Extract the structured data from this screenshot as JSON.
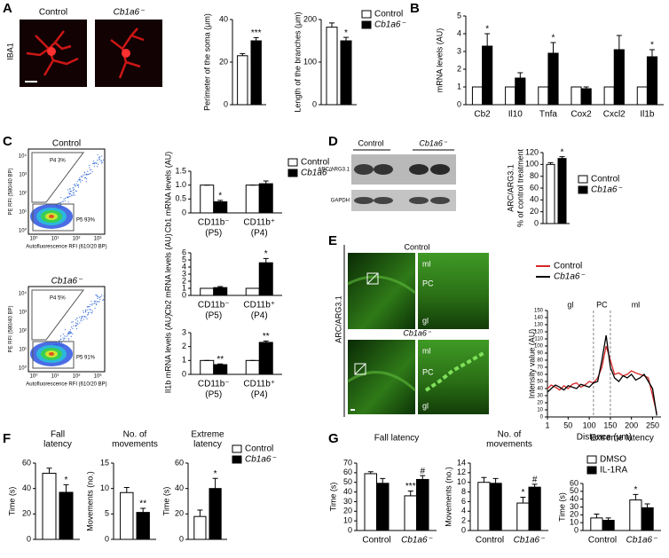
{
  "figure": {
    "panel_labels": [
      "A",
      "B",
      "C",
      "D",
      "E",
      "F",
      "G"
    ],
    "a_images": {
      "labels": [
        "Control",
        "Cb1a6⁻"
      ],
      "stain": "IBA1"
    },
    "c_flow": {
      "plots": [
        {
          "title": "Control",
          "gates": [
            "P4 3%",
            "P5 93%"
          ]
        },
        {
          "title": "Cb1a6⁻",
          "gates": [
            "P4 5%",
            "P5 91%"
          ]
        }
      ],
      "y_label": "PE RFI (580/40 BP)",
      "x_label": "Autofluorescence RFI (610/20 BP)",
      "ticks": [
        "10⁰",
        "10¹",
        "10²",
        "10³",
        "10⁴"
      ]
    },
    "d_blot": {
      "groups": [
        "Control",
        "Cb1a6⁻"
      ],
      "rows": [
        "ARC/ARG3.1",
        "GAPDH"
      ]
    },
    "e_images": {
      "stain": "ARC/ARG3.1",
      "panels": [
        {
          "title": "Control",
          "layers": [
            "ml",
            "PC",
            "gl"
          ]
        },
        {
          "title": "Cb1a6⁻",
          "layers": [
            "ml",
            "PC",
            "gl"
          ]
        }
      ]
    }
  },
  "chart_data": [
    {
      "type": "bar",
      "y_label": "Perimeter of the soma (μm)",
      "ylim": [
        0,
        40
      ],
      "yticks": [
        0,
        20,
        40
      ],
      "series": [
        {
          "color": "#ffffff",
          "values": [
            23
          ],
          "errors": [
            1
          ],
          "significance": [
            null
          ]
        },
        {
          "color": "#000000",
          "values": [
            30
          ],
          "errors": [
            1.5
          ],
          "significance": [
            "***"
          ]
        }
      ]
    },
    {
      "type": "bar",
      "y_label": "Length of the branches (μm)",
      "ylim": [
        0,
        200
      ],
      "yticks": [
        0,
        100,
        200
      ],
      "series": [
        {
          "name": "Control",
          "color": "#ffffff",
          "values": [
            182
          ],
          "errors": [
            10
          ],
          "significance": [
            null
          ]
        },
        {
          "name": "Cb1a6⁻",
          "color": "#000000",
          "values": [
            150
          ],
          "errors": [
            8
          ],
          "significance": [
            "*"
          ]
        }
      ]
    },
    {
      "type": "bar",
      "y_label": "mRNA levels (AU)",
      "ylim": [
        0,
        5
      ],
      "yticks": [
        0,
        1,
        2,
        3,
        4,
        5
      ],
      "categories": [
        "Cb2",
        "Il10",
        "Tnfa",
        "Cox2",
        "Cxcl2",
        "Il1b"
      ],
      "series": [
        {
          "color": "#ffffff",
          "values": [
            1,
            1,
            1,
            1,
            1,
            1
          ],
          "errors": [
            0,
            0,
            0,
            0,
            0,
            0
          ],
          "significance": [
            null,
            null,
            null,
            null,
            null,
            null
          ]
        },
        {
          "color": "#000000",
          "values": [
            3.3,
            1.5,
            2.9,
            0.9,
            3.1,
            2.7
          ],
          "errors": [
            0.7,
            0.3,
            0.6,
            0.1,
            0.8,
            0.4
          ],
          "significance": [
            "*",
            null,
            "*",
            null,
            null,
            "*"
          ]
        }
      ]
    },
    {
      "type": "bar",
      "y_label": "Cb1 mRNA levels (AU)",
      "ylim": [
        0,
        1.5
      ],
      "yticks": [
        0,
        0.5,
        {
          "value": 1,
          "label": "1.0"
        },
        1.5
      ],
      "categories": [
        "CD11b⁻",
        "CD11b⁺"
      ],
      "category_sublabels": [
        "(P5)",
        "(P4)"
      ],
      "series": [
        {
          "name": "Control",
          "color": "#ffffff",
          "values": [
            1,
            1
          ],
          "errors": [
            0,
            0
          ],
          "significance": [
            null,
            null
          ]
        },
        {
          "name": "Cb1a6⁻",
          "color": "#000000",
          "values": [
            0.4,
            1.05
          ],
          "errors": [
            0.05,
            0.1
          ],
          "significance": [
            "*",
            null
          ]
        }
      ]
    },
    {
      "type": "bar",
      "y_label": "Cb2 mRNA levels (AU)",
      "ylim": [
        0,
        6
      ],
      "yticks": [
        0,
        1,
        2,
        3,
        4,
        5,
        6
      ],
      "categories": [
        "CD11b⁻",
        "CD11b⁺"
      ],
      "category_sublabels": [
        "(P5)",
        "(P4)"
      ],
      "series": [
        {
          "color": "#ffffff",
          "values": [
            1,
            1
          ],
          "errors": [
            0,
            0
          ],
          "significance": [
            null,
            null
          ]
        },
        {
          "color": "#000000",
          "values": [
            1.1,
            4.6
          ],
          "errors": [
            0.15,
            0.6
          ],
          "significance": [
            null,
            "*"
          ]
        }
      ]
    },
    {
      "type": "bar",
      "y_label": "Il1b mRNA levels (AU)",
      "ylim": [
        0,
        3
      ],
      "yticks": [
        0,
        1,
        2,
        3
      ],
      "categories": [
        "CD11b⁻",
        "CD11b⁺"
      ],
      "category_sublabels": [
        "(P5)",
        "(P4)"
      ],
      "series": [
        {
          "color": "#ffffff",
          "values": [
            1,
            1
          ],
          "errors": [
            0,
            0
          ],
          "significance": [
            null,
            null
          ]
        },
        {
          "color": "#000000",
          "values": [
            0.7,
            2.3
          ],
          "errors": [
            0.05,
            0.1
          ],
          "significance": [
            "**",
            "**"
          ]
        }
      ]
    },
    {
      "type": "bar",
      "y_label": [
        "ARC/ARG3.1",
        "% of control treatment"
      ],
      "ylim": [
        0,
        120
      ],
      "yticks": [
        0,
        20,
        40,
        60,
        80,
        100,
        120
      ],
      "series": [
        {
          "name": "Control",
          "color": "#ffffff",
          "values": [
            100
          ],
          "errors": [
            3
          ],
          "significance": [
            null
          ]
        },
        {
          "name": "Cb1a6⁻",
          "color": "#000000",
          "values": [
            110
          ],
          "errors": [
            3
          ],
          "significance": [
            "*"
          ]
        }
      ]
    },
    {
      "type": "line",
      "x_label": "Distance (μm)",
      "y_label": "Intensity value (AU)",
      "xlim": [
        1,
        270
      ],
      "xticks": [
        1,
        50,
        100,
        150,
        200,
        250
      ],
      "ylim": [
        0,
        150
      ],
      "yticks": [
        0,
        10,
        20,
        30,
        40,
        50,
        60,
        70,
        80,
        90,
        100,
        110,
        120,
        130,
        140,
        150
      ],
      "x": [
        1,
        10,
        20,
        30,
        40,
        50,
        60,
        70,
        80,
        90,
        100,
        110,
        120,
        130,
        140,
        150,
        160,
        170,
        180,
        190,
        200,
        210,
        220,
        230,
        240,
        250,
        260
      ],
      "regions": [
        {
          "label": "gl",
          "start": 1,
          "end": 110
        },
        {
          "label": "PC",
          "start": 110,
          "end": 150
        },
        {
          "label": "ml",
          "start": 150,
          "end": 270
        }
      ],
      "series": [
        {
          "name": "Control",
          "color": "#d62728",
          "values": [
            40,
            45,
            42,
            38,
            44,
            40,
            46,
            48,
            42,
            45,
            50,
            48,
            55,
            70,
            100,
            80,
            60,
            62,
            58,
            60,
            65,
            62,
            60,
            58,
            55,
            30,
            5
          ]
        },
        {
          "name": "Cb1a6⁻",
          "color": "#000000",
          "values": [
            35,
            40,
            45,
            42,
            38,
            44,
            42,
            40,
            46,
            44,
            42,
            48,
            50,
            80,
            115,
            70,
            55,
            50,
            58,
            55,
            60,
            52,
            55,
            60,
            50,
            40,
            2
          ]
        }
      ]
    },
    {
      "type": "bar",
      "title": [
        "Fall",
        "latency"
      ],
      "y_label": "Time (s)",
      "ylim": [
        0,
        60
      ],
      "yticks": [
        0,
        20,
        40,
        60
      ],
      "series": [
        {
          "color": "#ffffff",
          "values": [
            52
          ],
          "errors": [
            4
          ],
          "significance": [
            null
          ]
        },
        {
          "color": "#000000",
          "values": [
            37
          ],
          "errors": [
            6
          ],
          "significance": [
            "*"
          ]
        }
      ]
    },
    {
      "type": "bar",
      "title": [
        "No. of",
        "movements"
      ],
      "y_label": "Movements (no.)",
      "ylim": [
        0,
        15
      ],
      "yticks": [
        0,
        5,
        10,
        15
      ],
      "series": [
        {
          "color": "#ffffff",
          "values": [
            9.2
          ],
          "errors": [
            1
          ],
          "significance": [
            null
          ]
        },
        {
          "color": "#000000",
          "values": [
            5.3
          ],
          "errors": [
            0.8
          ],
          "significance": [
            "**"
          ]
        }
      ]
    },
    {
      "type": "bar",
      "title": [
        "Extreme",
        "latency"
      ],
      "y_label": "Time (s)",
      "ylim": [
        0,
        60
      ],
      "yticks": [
        0,
        20,
        40,
        60
      ],
      "series": [
        {
          "name": "Control",
          "color": "#ffffff",
          "values": [
            18
          ],
          "errors": [
            5
          ],
          "significance": [
            null
          ]
        },
        {
          "name": "Cb1a6⁻",
          "color": "#000000",
          "values": [
            40
          ],
          "errors": [
            8
          ],
          "significance": [
            "*"
          ]
        }
      ]
    },
    {
      "type": "bar",
      "title": "Fall latency",
      "y_label": "Time (s)",
      "ylim": [
        0,
        70
      ],
      "yticks": [
        0,
        10,
        20,
        30,
        40,
        50,
        60,
        70
      ],
      "categories": [
        "Control",
        "Cb1a6⁻"
      ],
      "series": [
        {
          "color": "#ffffff",
          "values": [
            59,
            36
          ],
          "errors": [
            2,
            5
          ],
          "significance": [
            null,
            "***"
          ]
        },
        {
          "color": "#000000",
          "values": [
            49,
            53
          ],
          "errors": [
            5,
            4
          ],
          "significance": [
            null,
            "#"
          ]
        }
      ]
    },
    {
      "type": "bar",
      "title": [
        "No. of",
        "movements"
      ],
      "y_label": "Movements (no.)",
      "ylim": [
        0,
        14
      ],
      "yticks": [
        0,
        2,
        4,
        6,
        8,
        10,
        12,
        14
      ],
      "categories": [
        "Control",
        "Cb1a6⁻"
      ],
      "series": [
        {
          "color": "#ffffff",
          "values": [
            10,
            5.7
          ],
          "errors": [
            1,
            1.2
          ],
          "significance": [
            null,
            "*"
          ]
        },
        {
          "color": "#000000",
          "values": [
            9.8,
            9.0
          ],
          "errors": [
            1,
            0.6
          ],
          "significance": [
            null,
            "#"
          ]
        }
      ]
    },
    {
      "type": "bar",
      "title": "Extreme latency",
      "y_label": "Time (s)",
      "ylim": [
        0,
        60
      ],
      "yticks": [
        0,
        10,
        20,
        30,
        40,
        50,
        60
      ],
      "categories": [
        "Control",
        "Cb1a6⁻"
      ],
      "series": [
        {
          "name": "DMSO",
          "color": "#ffffff",
          "values": [
            16,
            39
          ],
          "errors": [
            5,
            7
          ],
          "significance": [
            null,
            "*"
          ]
        },
        {
          "name": "IL-1RA",
          "color": "#000000",
          "values": [
            13,
            29
          ],
          "errors": [
            3,
            5
          ],
          "significance": [
            null,
            null
          ]
        }
      ]
    }
  ]
}
